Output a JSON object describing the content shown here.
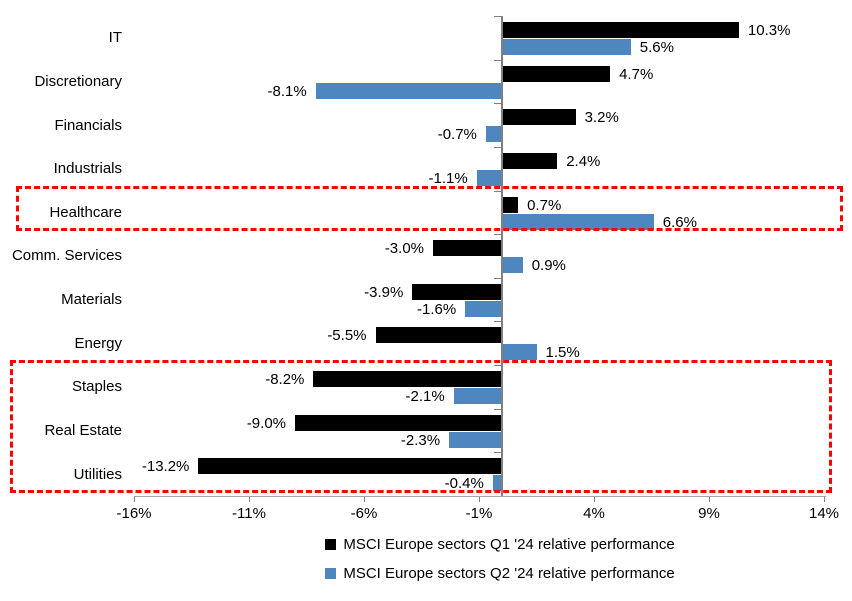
{
  "chart_data": {
    "type": "bar",
    "orientation": "horizontal",
    "title": "",
    "xlabel": "",
    "ylabel": "",
    "categories": [
      "IT",
      "Discretionary",
      "Financials",
      "Industrials",
      "Healthcare",
      "Comm. Services",
      "Materials",
      "Energy",
      "Staples",
      "Real Estate",
      "Utilities"
    ],
    "series": [
      {
        "name": "MSCI Europe sectors Q1 '24 relative performance",
        "color": "#000000",
        "values": [
          10.3,
          4.7,
          3.2,
          2.4,
          0.7,
          -3.0,
          -3.9,
          -5.5,
          -8.2,
          -9.0,
          -13.2
        ]
      },
      {
        "name": "MSCI Europe sectors Q2 '24 relative performance",
        "color": "#4E86C0",
        "values": [
          5.6,
          -8.1,
          -0.7,
          -1.1,
          6.6,
          0.9,
          -1.6,
          1.5,
          -2.1,
          -2.3,
          -0.4
        ]
      }
    ],
    "value_labels_shown": true,
    "value_label_format": "one-decimal-percent",
    "x_ticks": {
      "values": [
        -16,
        -11,
        -6,
        -1,
        4,
        9,
        14
      ],
      "labels": [
        "-16%",
        "-11%",
        "-6%",
        "-1%",
        "4%",
        "9%",
        "14%"
      ]
    },
    "xlim": [
      -16,
      14
    ],
    "grid": false,
    "legend_position": "bottom-center",
    "annotations": {
      "highlight_color": "#ff0000",
      "highlight_boxes": [
        {
          "id": "healthcare",
          "sectors": [
            "Healthcare"
          ],
          "style": "red-dashed-rectangle"
        },
        {
          "id": "defensives",
          "sectors": [
            "Staples",
            "Real Estate",
            "Utilities"
          ],
          "style": "red-dashed-rectangle"
        }
      ]
    }
  }
}
